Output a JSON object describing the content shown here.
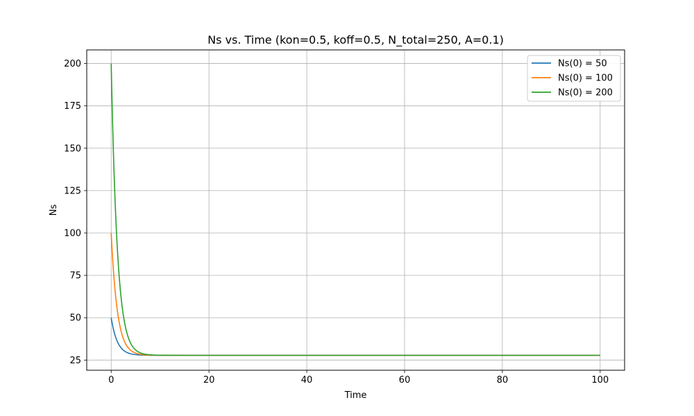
{
  "chart_data": {
    "type": "line",
    "title": "Ns vs. Time (kon=0.5, koff=0.5, N_total=250, A=0.1)",
    "xlabel": "Time",
    "ylabel": "Ns",
    "xlim": [
      -5,
      105
    ],
    "ylim": [
      19,
      208
    ],
    "xticks": [
      0,
      20,
      40,
      60,
      80,
      100
    ],
    "yticks": [
      25,
      50,
      75,
      100,
      125,
      150,
      175,
      200
    ],
    "grid": true,
    "legend_position": "top-right",
    "x_range": [
      0,
      100
    ],
    "steady_state": 27.8,
    "decay_rate": 0.8,
    "series": [
      {
        "name": "Ns(0) = 50",
        "initial": 50,
        "color": "#1f77b4"
      },
      {
        "name": "Ns(0) = 100",
        "initial": 100,
        "color": "#ff7f0e"
      },
      {
        "name": "Ns(0) = 200",
        "initial": 200,
        "color": "#2ca02c"
      }
    ]
  }
}
